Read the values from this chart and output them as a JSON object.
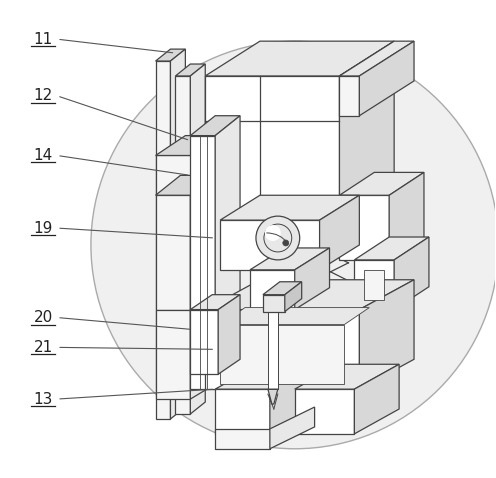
{
  "bg": "#ffffff",
  "circle_fill": "#f0f0f0",
  "circle_edge": "#aaaaaa",
  "lc": "#444444",
  "fill_white": "#ffffff",
  "fill_light": "#f5f5f5",
  "fill_mid": "#e8e8e8",
  "fill_dark": "#d8d8d8",
  "fill_darker": "#c8c8c8",
  "figsize": [
    4.96,
    4.78
  ],
  "dpi": 100
}
